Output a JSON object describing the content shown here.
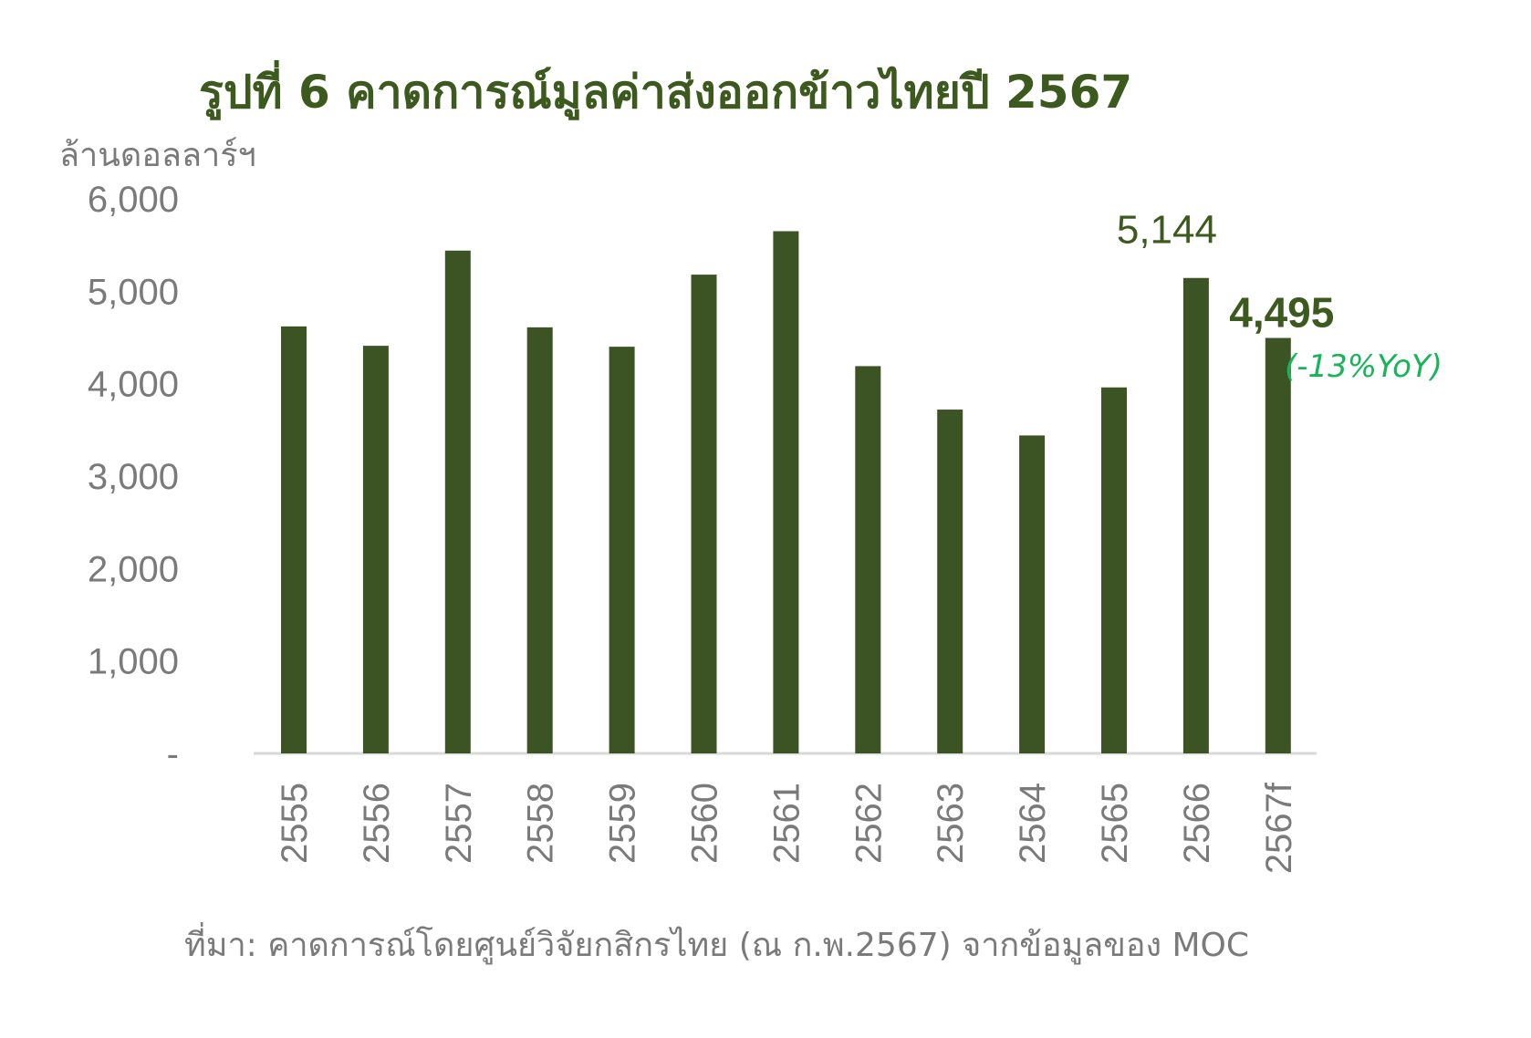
{
  "chart_data": {
    "type": "bar",
    "title": "รูปที่ 6 คาดการณ์มูลค่าส่งออกข้าวไทยปี 2567",
    "ylabel": "ล้านดอลลาร์ฯ",
    "categories": [
      "2555",
      "2556",
      "2557",
      "2558",
      "2559",
      "2560",
      "2561",
      "2562",
      "2563",
      "2564",
      "2565",
      "2566",
      "2567f"
    ],
    "values": [
      4620,
      4410,
      5440,
      4610,
      4400,
      5180,
      5650,
      4190,
      3720,
      3440,
      3960,
      5144,
      4495
    ],
    "ylim": [
      0,
      6000
    ],
    "yticks": [
      0,
      1000,
      2000,
      3000,
      4000,
      5000,
      6000
    ],
    "ytick_labels": [
      "-",
      "1,000",
      "2,000",
      "3,000",
      "4,000",
      "5,000",
      "6,000"
    ],
    "data_labels": [
      {
        "category": "2566",
        "text": "5,144"
      },
      {
        "category": "2567f",
        "text": "4,495"
      }
    ],
    "annotation": "(-13%YoY)",
    "source": "ที่มา: คาดการณ์โดยศูนย์วิจัยกสิกรไทย (ณ ก.พ.2567) จากข้อมูลของ MOC",
    "grid": false,
    "legend": "none"
  },
  "colors": {
    "bar": "#3c5424",
    "title": "#3c5a1e",
    "axis_text": "#7a7a7a",
    "label": "#3c5a1e",
    "annotation": "#19b35a",
    "axis_line": "#d9d9d9"
  }
}
